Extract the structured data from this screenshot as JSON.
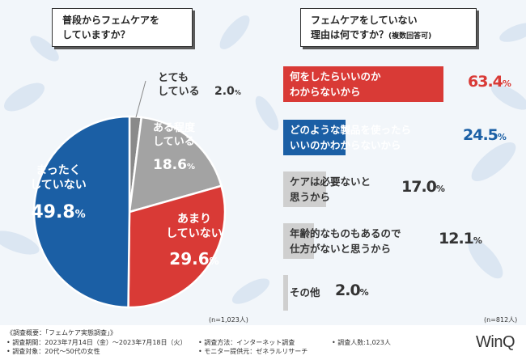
{
  "q1": {
    "line1": "普段からフェムケアを",
    "line2": "していますか？"
  },
  "q2": {
    "line1": "フェムケアをしていない",
    "line2": "理由は何ですか？",
    "line2_small": "(複数回答可)"
  },
  "chart_data": [
    {
      "type": "pie",
      "title": "普段からフェムケアをしていますか？",
      "categories": [
        "とてもしている",
        "ある程度している",
        "あまりしていない",
        "まったくしていない"
      ],
      "values": [
        2.0,
        18.6,
        29.6,
        49.8
      ],
      "colors": [
        "#8a8a8a",
        "#a3a3a3",
        "#d93a36",
        "#1b5fa5"
      ],
      "labels": [
        {
          "lines": [
            "とても",
            "している"
          ],
          "pct": "2.0",
          "pc": "%"
        },
        {
          "lines": [
            "ある程度",
            "している"
          ],
          "pct": "18.6",
          "pc": "%"
        },
        {
          "lines": [
            "あまり",
            "していない"
          ],
          "pct": "29.6",
          "pc": "%"
        },
        {
          "lines": [
            "まったく",
            "していない"
          ],
          "pct": "49.8",
          "pc": "%"
        }
      ],
      "n": "(n=1,023人)"
    },
    {
      "type": "bar",
      "title": "フェムケアをしていない理由は何ですか？(複数回答可)",
      "categories": [
        "何をしたらいいのかわからないから",
        "どのような製品を使ったらいいのかわからないから",
        "ケアは必要ないと思うから",
        "年齢的なものもあるので仕方がないと思うから",
        "その他"
      ],
      "values": [
        63.4,
        24.5,
        17.0,
        12.1,
        2.0
      ],
      "colors": [
        "#d93a36",
        "#1b5fa5",
        "#cfcfcf",
        "#cfcfcf",
        "#cfcfcf"
      ],
      "labels": [
        {
          "lines": [
            "何をしたらいいのか",
            "わからないから"
          ],
          "pct": "63.4",
          "pc": "%"
        },
        {
          "lines": [
            "どのような製品を使ったら",
            "いいのかわからないから"
          ],
          "pct": "24.5",
          "pc": "%"
        },
        {
          "lines": [
            "ケアは必要ないと",
            "思うから"
          ],
          "pct": "17.0",
          "pc": "%"
        },
        {
          "lines": [
            "年齢的なものもあるので",
            "仕方がないと思うから"
          ],
          "pct": "12.1",
          "pc": "%"
        },
        {
          "lines": [
            "その他"
          ],
          "pct": "2.0",
          "pc": "%"
        }
      ],
      "n": "(n=812人)"
    }
  ],
  "footer": {
    "title": "《調査概要：「フェムケア実態調査」》",
    "period": "• 調査期間：2023年7月14日（金）～2023年7月18日（火）",
    "target": "• 調査対象：20代～50代の女性",
    "method": "• 調査方法：インターネット調査",
    "provider": "• モニター提供元：ゼネラルリサーチ",
    "count": "• 調査人数:1,023人",
    "logo": "WinQ"
  }
}
